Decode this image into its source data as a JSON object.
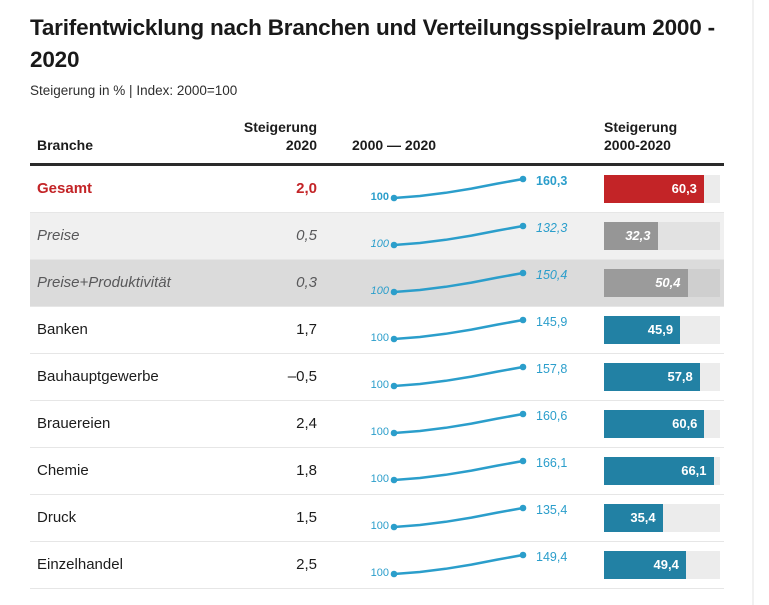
{
  "page": {
    "title": "Tarifentwicklung nach Branchen und Verteilungsspielraum 2000 - 2020",
    "subtitle": "Steigerung in % | Index: 2000=100"
  },
  "colors": {
    "highlight_red": "#c32427",
    "sector_teal": "#2281a4",
    "sparkline_blue": "#2b9ecb",
    "reference_gray_bar": "#969696",
    "row_shade_light": "#f0f0f0",
    "row_shade_dark": "#dbdbdb",
    "bar_track": "#ececec"
  },
  "table": {
    "headers": {
      "branche": "Branche",
      "steigerung_2020_line1": "Steigerung",
      "steigerung_2020_line2": "2020",
      "trend": "2000 — 2020",
      "steigerung_range_line1": "Steigerung",
      "steigerung_range_line2": "2000-2020"
    },
    "bar_scale_max": 70,
    "rows": [
      {
        "branche": "Gesamt",
        "steigerung_2020": "2,0",
        "index_start": "100",
        "index_end": "160,3",
        "bar_label": "60,3",
        "bar_value": 60.3,
        "style": "highlight-red"
      },
      {
        "branche": "Preise",
        "steigerung_2020": "0,5",
        "index_start": "100",
        "index_end": "132,3",
        "bar_label": "32,3",
        "bar_value": 32.3,
        "style": "reference-light"
      },
      {
        "branche": "Preise+Produktivität",
        "steigerung_2020": "0,3",
        "index_start": "100",
        "index_end": "150,4",
        "bar_label": "50,4",
        "bar_value": 50.4,
        "style": "reference-dark"
      },
      {
        "branche": "Banken",
        "steigerung_2020": "1,7",
        "index_start": "100",
        "index_end": "145,9",
        "bar_label": "45,9",
        "bar_value": 45.9,
        "style": "normal"
      },
      {
        "branche": "Bauhauptgewerbe",
        "steigerung_2020": "–0,5",
        "index_start": "100",
        "index_end": "157,8",
        "bar_label": "57,8",
        "bar_value": 57.8,
        "style": "normal"
      },
      {
        "branche": "Brauereien",
        "steigerung_2020": "2,4",
        "index_start": "100",
        "index_end": "160,6",
        "bar_label": "60,6",
        "bar_value": 60.6,
        "style": "normal"
      },
      {
        "branche": "Chemie",
        "steigerung_2020": "1,8",
        "index_start": "100",
        "index_end": "166,1",
        "bar_label": "66,1",
        "bar_value": 66.1,
        "style": "normal"
      },
      {
        "branche": "Druck",
        "steigerung_2020": "1,5",
        "index_start": "100",
        "index_end": "135,4",
        "bar_label": "35,4",
        "bar_value": 35.4,
        "style": "normal"
      },
      {
        "branche": "Einzelhandel",
        "steigerung_2020": "2,5",
        "index_start": "100",
        "index_end": "149,4",
        "bar_label": "49,4",
        "bar_value": 49.4,
        "style": "normal"
      }
    ]
  },
  "chart_data": {
    "type": "table",
    "title": "Tarifentwicklung nach Branchen und Verteilungsspielraum 2000 - 2020",
    "subtitle": "Steigerung in % | Index: 2000=100",
    "columns": [
      "Branche",
      "Steigerung 2020",
      "2000 — 2020",
      "Steigerung 2000-2020"
    ],
    "embedded_charts": [
      {
        "type": "line",
        "note": "sparkline per row, index 2000=100 to 2020"
      },
      {
        "type": "bar",
        "note": "horizontal bar per row, Steigerung 2000-2020 in %",
        "xlim": [
          0,
          70
        ]
      }
    ],
    "rows": [
      {
        "branche": "Gesamt",
        "steigerung_2020_pct": 2.0,
        "index_2000": 100,
        "index_2020": 160.3,
        "steigerung_2000_2020_pct": 60.3,
        "emphasis": "red-bold"
      },
      {
        "branche": "Preise",
        "steigerung_2020_pct": 0.5,
        "index_2000": 100,
        "index_2020": 132.3,
        "steigerung_2000_2020_pct": 32.3,
        "emphasis": "gray-italic-reference"
      },
      {
        "branche": "Preise+Produktivität",
        "steigerung_2020_pct": 0.3,
        "index_2000": 100,
        "index_2020": 150.4,
        "steigerung_2000_2020_pct": 50.4,
        "emphasis": "gray-italic-reference"
      },
      {
        "branche": "Banken",
        "steigerung_2020_pct": 1.7,
        "index_2000": 100,
        "index_2020": 145.9,
        "steigerung_2000_2020_pct": 45.9,
        "emphasis": "none"
      },
      {
        "branche": "Bauhauptgewerbe",
        "steigerung_2020_pct": -0.5,
        "index_2000": 100,
        "index_2020": 157.8,
        "steigerung_2000_2020_pct": 57.8,
        "emphasis": "none"
      },
      {
        "branche": "Brauereien",
        "steigerung_2020_pct": 2.4,
        "index_2000": 100,
        "index_2020": 160.6,
        "steigerung_2000_2020_pct": 60.6,
        "emphasis": "none"
      },
      {
        "branche": "Chemie",
        "steigerung_2020_pct": 1.8,
        "index_2000": 100,
        "index_2020": 166.1,
        "steigerung_2000_2020_pct": 66.1,
        "emphasis": "none"
      },
      {
        "branche": "Druck",
        "steigerung_2020_pct": 1.5,
        "index_2000": 100,
        "index_2020": 135.4,
        "steigerung_2000_2020_pct": 35.4,
        "emphasis": "none"
      },
      {
        "branche": "Einzelhandel",
        "steigerung_2020_pct": 2.5,
        "index_2000": 100,
        "index_2020": 149.4,
        "steigerung_2000_2020_pct": 49.4,
        "emphasis": "none"
      }
    ]
  }
}
